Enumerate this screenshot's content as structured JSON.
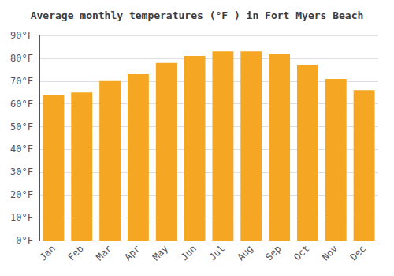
{
  "chart_data": {
    "type": "bar",
    "title": "Average monthly temperatures (°F ) in Fort Myers Beach",
    "categories": [
      "Jan",
      "Feb",
      "Mar",
      "Apr",
      "May",
      "Jun",
      "Jul",
      "Aug",
      "Sep",
      "Oct",
      "Nov",
      "Dec"
    ],
    "values": [
      64,
      65,
      70,
      73,
      78,
      81,
      83,
      83,
      82,
      77,
      71,
      66
    ],
    "color": "#F5A623",
    "ylim": [
      0,
      90
    ],
    "yticks": [
      {
        "value": 0,
        "label": "0°F"
      },
      {
        "value": 10,
        "label": "10°F"
      },
      {
        "value": 20,
        "label": "20°F"
      },
      {
        "value": 30,
        "label": "30°F"
      },
      {
        "value": 40,
        "label": "40°F"
      },
      {
        "value": 50,
        "label": "50°F"
      },
      {
        "value": 60,
        "label": "60°F"
      },
      {
        "value": 70,
        "label": "70°F"
      },
      {
        "value": 80,
        "label": "80°F"
      },
      {
        "value": 90,
        "label": "90°F"
      }
    ],
    "grid": true
  }
}
